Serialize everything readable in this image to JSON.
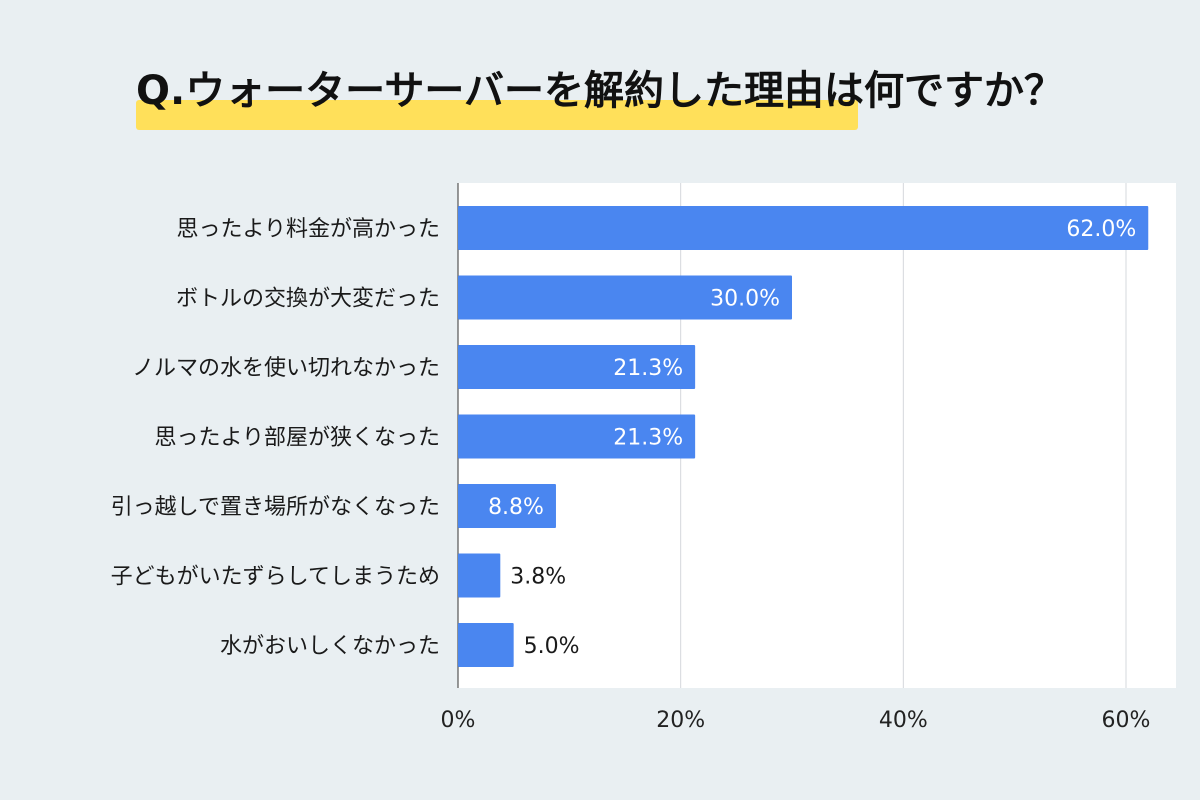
{
  "title": {
    "prefix": "Q.",
    "text": "ウォーターサーバーを解約した理由は何ですか？"
  },
  "colors": {
    "bar": "#4a86f0",
    "highlight": "#ffe05a",
    "background": "#e9eff2"
  },
  "chart_data": {
    "type": "bar",
    "orientation": "horizontal",
    "categories": [
      "思ったより料金が高かった",
      "ボトルの交換が大変だった",
      "ノルマの水を使い切れなかった",
      "思ったより部屋が狭くなった",
      "引っ越しで置き場所がなくなった",
      "子どもがいたずらしてしまうため",
      "水がおいしくなかった"
    ],
    "values": [
      62.0,
      30.0,
      21.3,
      21.3,
      8.8,
      3.8,
      5.0
    ],
    "value_labels": [
      "62.0%",
      "30.0%",
      "21.3%",
      "21.3%",
      "8.8%",
      "3.8%",
      "5.0%"
    ],
    "xlim": [
      0,
      60
    ],
    "xticks": [
      0,
      20,
      40,
      60
    ],
    "xtick_labels": [
      "0%",
      "20%",
      "40%",
      "60%"
    ],
    "grid": true
  }
}
